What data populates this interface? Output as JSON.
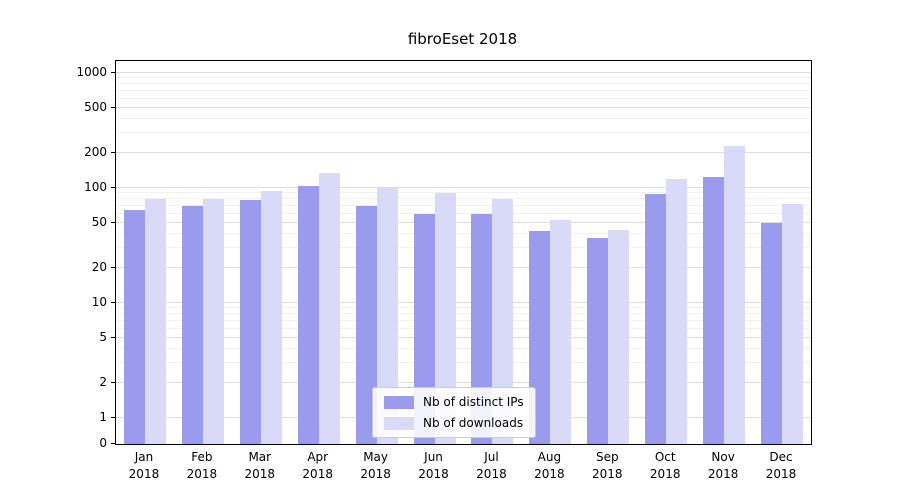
{
  "title": "fibroEset 2018",
  "chart_data": {
    "type": "bar",
    "title": "fibroEset 2018",
    "categories": [
      "Jan",
      "Feb",
      "Mar",
      "Apr",
      "May",
      "Jun",
      "Jul",
      "Aug",
      "Sep",
      "Oct",
      "Nov",
      "Dec"
    ],
    "category_year": "2018",
    "series": [
      {
        "name": "Nb of distinct IPs",
        "color": "#9a9aee",
        "values": [
          65,
          70,
          78,
          105,
          70,
          60,
          60,
          42,
          37,
          88,
          125,
          50
        ]
      },
      {
        "name": "Nb of downloads",
        "color": "#d9d9f8",
        "values": [
          80,
          80,
          95,
          135,
          102,
          90,
          80,
          53,
          43,
          120,
          230,
          72
        ]
      }
    ],
    "yscale": "symlog",
    "yticks": [
      0,
      1,
      2,
      5,
      10,
      20,
      50,
      100,
      200,
      500,
      1000
    ],
    "ylim": [
      0,
      1300
    ],
    "xlabel": "",
    "ylabel": "",
    "grid": true,
    "legend_position": "lower center"
  }
}
